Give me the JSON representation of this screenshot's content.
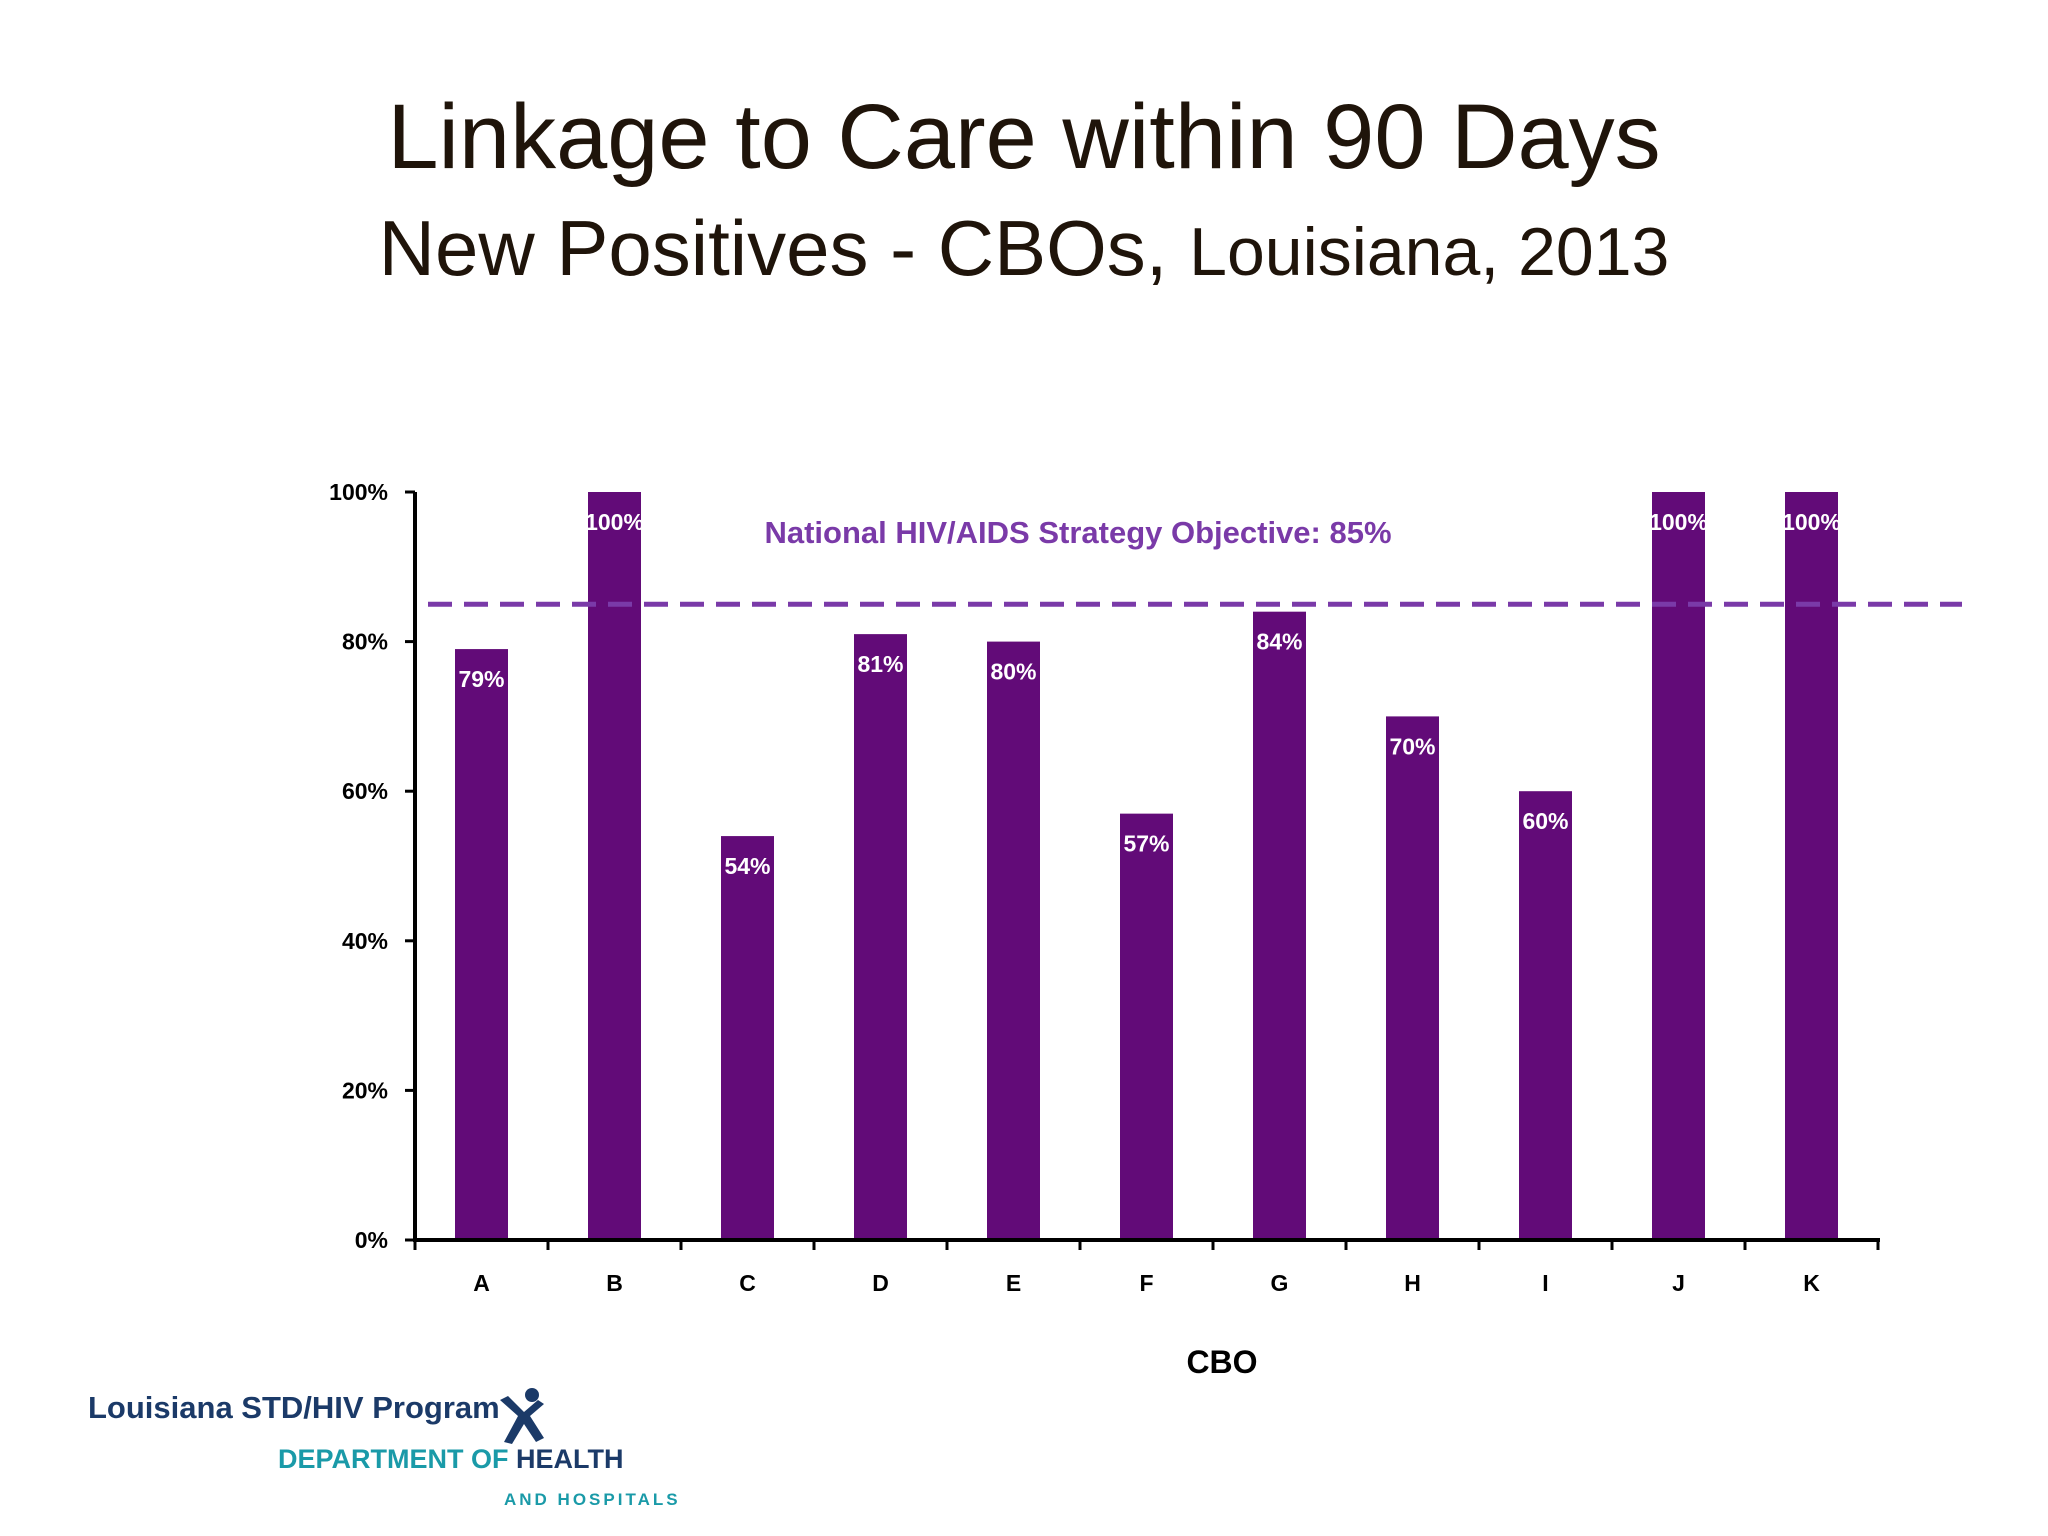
{
  "slide": {
    "title": "Linkage to Care within 90 Days",
    "subtitle_main": "New Positives - CBOs,",
    "subtitle_rest": "Louisiana, 2013"
  },
  "chart_data": {
    "type": "bar",
    "categories": [
      "A",
      "B",
      "C",
      "D",
      "E",
      "F",
      "G",
      "H",
      "I",
      "J",
      "K"
    ],
    "values": [
      79,
      100,
      54,
      81,
      80,
      57,
      84,
      70,
      60,
      100,
      100
    ],
    "value_labels": [
      "79%",
      "100%",
      "54%",
      "81%",
      "80%",
      "57%",
      "84%",
      "70%",
      "60%",
      "100%",
      "100%"
    ],
    "xlabel": "CBO",
    "ylabel": "",
    "ylim": [
      0,
      100
    ],
    "y_ticks": [
      0,
      20,
      40,
      60,
      80,
      100
    ],
    "y_tick_labels": [
      "0%",
      "20%",
      "40%",
      "60%",
      "80%",
      "100%"
    ],
    "reference_line": {
      "value": 85,
      "label": "National HIV/AIDS Strategy Objective:  85%",
      "style": "dashed"
    },
    "grid": false,
    "legend": "none",
    "colors": {
      "bar": "#620b78",
      "reference": "#7a3aa8",
      "value_label": "#ffffff",
      "axis": "#000000"
    }
  },
  "footer": {
    "program": "Louisiana STD/HIV Program",
    "dept_prefix": "DEPARTMENT OF ",
    "dept_health": "HEALTH",
    "dept_sub": "AND HOSPITALS",
    "logo_icon": "dhh-figure-icon"
  }
}
